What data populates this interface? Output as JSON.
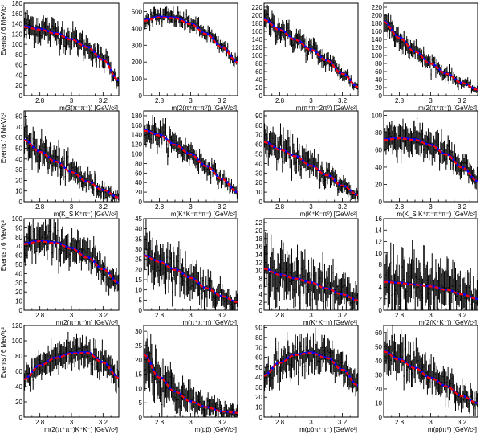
{
  "ylabel": "Events / 6 MeV/c²",
  "colors": {
    "data": "#000000",
    "fit": "#0000ff",
    "bkg": "#ff0000"
  },
  "chart_data": [
    {
      "type": "scatter",
      "xlabel": "m(3(π⁺π⁻)) [GeV/c²]",
      "xlim": [
        2.7,
        3.3
      ],
      "ylim": [
        0,
        180
      ],
      "yticks": [
        0,
        20,
        40,
        60,
        80,
        100,
        120,
        140,
        160,
        180
      ],
      "xticks": [
        2.8,
        3,
        3.2
      ],
      "shape": [
        [
          2.7,
          135
        ],
        [
          2.8,
          130
        ],
        [
          2.9,
          122
        ],
        [
          3.0,
          110
        ],
        [
          3.1,
          95
        ],
        [
          3.2,
          70
        ],
        [
          3.3,
          30
        ]
      ]
    },
    {
      "type": "scatter",
      "xlabel": "m(2(π⁺π⁻π⁰)) [GeV/c²]",
      "xlim": [
        2.7,
        3.3
      ],
      "ylim": [
        0,
        550
      ],
      "yticks": [
        0,
        100,
        200,
        300,
        400,
        500
      ],
      "xticks": [
        2.8,
        3,
        3.2
      ],
      "shape": [
        [
          2.7,
          450
        ],
        [
          2.8,
          470
        ],
        [
          2.9,
          465
        ],
        [
          3.0,
          430
        ],
        [
          3.1,
          370
        ],
        [
          3.2,
          290
        ],
        [
          3.3,
          200
        ]
      ]
    },
    {
      "type": "scatter",
      "xlabel": "m(π⁺π⁻2π⁰) [GeV/c²]",
      "xlim": [
        2.7,
        3.3
      ],
      "ylim": [
        0,
        230
      ],
      "yticks": [
        0,
        20,
        40,
        60,
        80,
        100,
        120,
        140,
        160,
        180,
        200,
        220
      ],
      "xticks": [
        2.8,
        3,
        3.2
      ],
      "shape": [
        [
          2.7,
          190
        ],
        [
          2.8,
          165
        ],
        [
          2.9,
          140
        ],
        [
          3.0,
          115
        ],
        [
          3.1,
          88
        ],
        [
          3.2,
          55
        ],
        [
          3.3,
          22
        ]
      ]
    },
    {
      "type": "scatter",
      "xlabel": "m(2(π⁺π⁻)) [GeV/c²]",
      "xlim": [
        2.7,
        3.3
      ],
      "ylim": [
        0,
        230
      ],
      "yticks": [
        0,
        20,
        40,
        60,
        80,
        100,
        120,
        140,
        160,
        180,
        200,
        220
      ],
      "xticks": [
        2.8,
        3,
        3.2
      ],
      "shape": [
        [
          2.7,
          185
        ],
        [
          2.8,
          145
        ],
        [
          2.9,
          110
        ],
        [
          3.0,
          80
        ],
        [
          3.1,
          55
        ],
        [
          3.2,
          32
        ],
        [
          3.3,
          15
        ]
      ]
    },
    {
      "type": "scatter",
      "xlabel": "m(K_S K⁺π⁻) [GeV/c²]",
      "xlim": [
        2.7,
        3.3
      ],
      "ylim": [
        0,
        85
      ],
      "yticks": [
        0,
        10,
        20,
        30,
        40,
        50,
        60,
        70,
        80
      ],
      "xticks": [
        2.8,
        3,
        3.2
      ],
      "shape": [
        [
          2.7,
          58
        ],
        [
          2.8,
          47
        ],
        [
          2.9,
          38
        ],
        [
          3.0,
          28
        ],
        [
          3.1,
          19
        ],
        [
          3.2,
          11
        ],
        [
          3.3,
          4
        ]
      ]
    },
    {
      "type": "scatter",
      "xlabel": "m(K⁺K⁻π⁺π⁻) [GeV/c²]",
      "xlim": [
        2.7,
        3.3
      ],
      "ylim": [
        0,
        190
      ],
      "yticks": [
        0,
        20,
        40,
        60,
        80,
        100,
        120,
        140,
        160,
        180
      ],
      "xticks": [
        2.8,
        3,
        3.2
      ],
      "shape": [
        [
          2.7,
          150
        ],
        [
          2.8,
          140
        ],
        [
          2.9,
          120
        ],
        [
          3.0,
          100
        ],
        [
          3.1,
          75
        ],
        [
          3.2,
          48
        ],
        [
          3.3,
          20
        ]
      ]
    },
    {
      "type": "scatter",
      "xlabel": "m(K⁺K⁻π⁰) [GeV/c²]",
      "xlim": [
        2.7,
        3.3
      ],
      "ylim": [
        0,
        95
      ],
      "yticks": [
        0,
        10,
        20,
        30,
        40,
        50,
        60,
        70,
        80,
        90
      ],
      "xticks": [
        2.8,
        3,
        3.2
      ],
      "shape": [
        [
          2.7,
          63
        ],
        [
          2.8,
          55
        ],
        [
          2.9,
          48
        ],
        [
          3.0,
          38
        ],
        [
          3.1,
          28
        ],
        [
          3.2,
          17
        ],
        [
          3.3,
          7
        ]
      ]
    },
    {
      "type": "scatter",
      "xlabel": "m(K_S K⁺π⁻π⁺π⁻) [GeV/c²]",
      "xlim": [
        2.7,
        3.3
      ],
      "ylim": [
        0,
        105
      ],
      "yticks": [
        0,
        20,
        40,
        60,
        80,
        100
      ],
      "xticks": [
        2.8,
        3,
        3.2
      ],
      "shape": [
        [
          2.7,
          72
        ],
        [
          2.8,
          74
        ],
        [
          2.9,
          72
        ],
        [
          3.0,
          66
        ],
        [
          3.1,
          55
        ],
        [
          3.2,
          40
        ],
        [
          3.3,
          24
        ]
      ]
    },
    {
      "type": "scatter",
      "xlabel": "m(2(π⁺π⁻)η) [GeV/c²]",
      "xlim": [
        2.7,
        3.3
      ],
      "ylim": [
        0,
        100
      ],
      "yticks": [
        0,
        10,
        20,
        30,
        40,
        50,
        60,
        70,
        80,
        90,
        100
      ],
      "xticks": [
        2.8,
        3,
        3.2
      ],
      "shape": [
        [
          2.7,
          73
        ],
        [
          2.8,
          76
        ],
        [
          2.9,
          74
        ],
        [
          3.0,
          68
        ],
        [
          3.1,
          58
        ],
        [
          3.2,
          45
        ],
        [
          3.3,
          30
        ]
      ]
    },
    {
      "type": "scatter",
      "xlabel": "m(π⁺π⁻η) [GeV/c²]",
      "xlim": [
        2.7,
        3.3
      ],
      "ylim": [
        0,
        45
      ],
      "yticks": [
        0,
        5,
        10,
        15,
        20,
        25,
        30,
        35,
        40,
        45
      ],
      "xticks": [
        2.8,
        3,
        3.2
      ],
      "shape": [
        [
          2.7,
          27
        ],
        [
          2.8,
          24
        ],
        [
          2.9,
          20
        ],
        [
          3.0,
          16
        ],
        [
          3.1,
          11
        ],
        [
          3.2,
          7
        ],
        [
          3.3,
          4
        ]
      ]
    },
    {
      "type": "scatter",
      "xlabel": "m(K⁺K⁻η) [GeV/c²]",
      "xlim": [
        2.7,
        3.3
      ],
      "ylim": [
        0,
        23
      ],
      "yticks": [
        0,
        2,
        4,
        6,
        8,
        10,
        12,
        14,
        16,
        18,
        20,
        22
      ],
      "xticks": [
        2.8,
        3,
        3.2
      ],
      "shape": [
        [
          2.7,
          10.5
        ],
        [
          2.8,
          9
        ],
        [
          2.9,
          8
        ],
        [
          3.0,
          7
        ],
        [
          3.1,
          5.5
        ],
        [
          3.2,
          4
        ],
        [
          3.3,
          2.5
        ]
      ]
    },
    {
      "type": "scatter",
      "xlabel": "m(2(K⁺K⁻)) [GeV/c²]",
      "xlim": [
        2.7,
        3.3
      ],
      "ylim": [
        0,
        16
      ],
      "yticks": [
        0,
        2,
        4,
        6,
        8,
        10,
        12,
        14,
        16
      ],
      "xticks": [
        2.8,
        3,
        3.2
      ],
      "shape": [
        [
          2.7,
          5
        ],
        [
          2.8,
          4.8
        ],
        [
          2.9,
          4.5
        ],
        [
          3.0,
          4.2
        ],
        [
          3.1,
          3.6
        ],
        [
          3.2,
          2.8
        ],
        [
          3.3,
          2
        ]
      ]
    },
    {
      "type": "scatter",
      "xlabel": "m(2(π⁺π⁻)K⁺K⁻) [GeV/c²]",
      "xlim": [
        2.7,
        3.3
      ],
      "ylim": [
        0,
        120
      ],
      "yticks": [
        0,
        20,
        40,
        60,
        80,
        100,
        120
      ],
      "xticks": [
        2.8,
        3,
        3.2
      ],
      "shape": [
        [
          2.7,
          50
        ],
        [
          2.8,
          68
        ],
        [
          2.9,
          78
        ],
        [
          3.0,
          84
        ],
        [
          3.1,
          85
        ],
        [
          3.2,
          72
        ],
        [
          3.3,
          52
        ]
      ]
    },
    {
      "type": "scatter",
      "xlabel": "m(pp̄) [GeV/c²]",
      "xlim": [
        2.7,
        3.3
      ],
      "ylim": [
        0,
        32
      ],
      "yticks": [
        0,
        5,
        10,
        15,
        20,
        25,
        30
      ],
      "xticks": [
        2.8,
        3,
        3.2
      ],
      "shape": [
        [
          2.7,
          22
        ],
        [
          2.8,
          14
        ],
        [
          2.9,
          9
        ],
        [
          3.0,
          5.5
        ],
        [
          3.1,
          3.5
        ],
        [
          3.2,
          2
        ],
        [
          3.3,
          1.5
        ]
      ]
    },
    {
      "type": "scatter",
      "xlabel": "m(pp̄π⁺π⁻) [GeV/c²]",
      "xlim": [
        2.7,
        3.3
      ],
      "ylim": [
        0,
        92
      ],
      "yticks": [
        0,
        10,
        20,
        30,
        40,
        50,
        60,
        70,
        80,
        90
      ],
      "xticks": [
        2.8,
        3,
        3.2
      ],
      "shape": [
        [
          2.7,
          42
        ],
        [
          2.8,
          55
        ],
        [
          2.9,
          63
        ],
        [
          3.0,
          65
        ],
        [
          3.1,
          60
        ],
        [
          3.2,
          48
        ],
        [
          3.3,
          32
        ]
      ]
    },
    {
      "type": "scatter",
      "xlabel": "m(pp̄π⁰) [GeV/c²]",
      "xlim": [
        2.7,
        3.3
      ],
      "ylim": [
        0,
        65
      ],
      "yticks": [
        0,
        10,
        20,
        30,
        40,
        50,
        60
      ],
      "xticks": [
        2.8,
        3,
        3.2
      ],
      "shape": [
        [
          2.7,
          47
        ],
        [
          2.8,
          41
        ],
        [
          2.9,
          35
        ],
        [
          3.0,
          28
        ],
        [
          3.1,
          22
        ],
        [
          3.2,
          15
        ],
        [
          3.3,
          10
        ]
      ]
    }
  ]
}
